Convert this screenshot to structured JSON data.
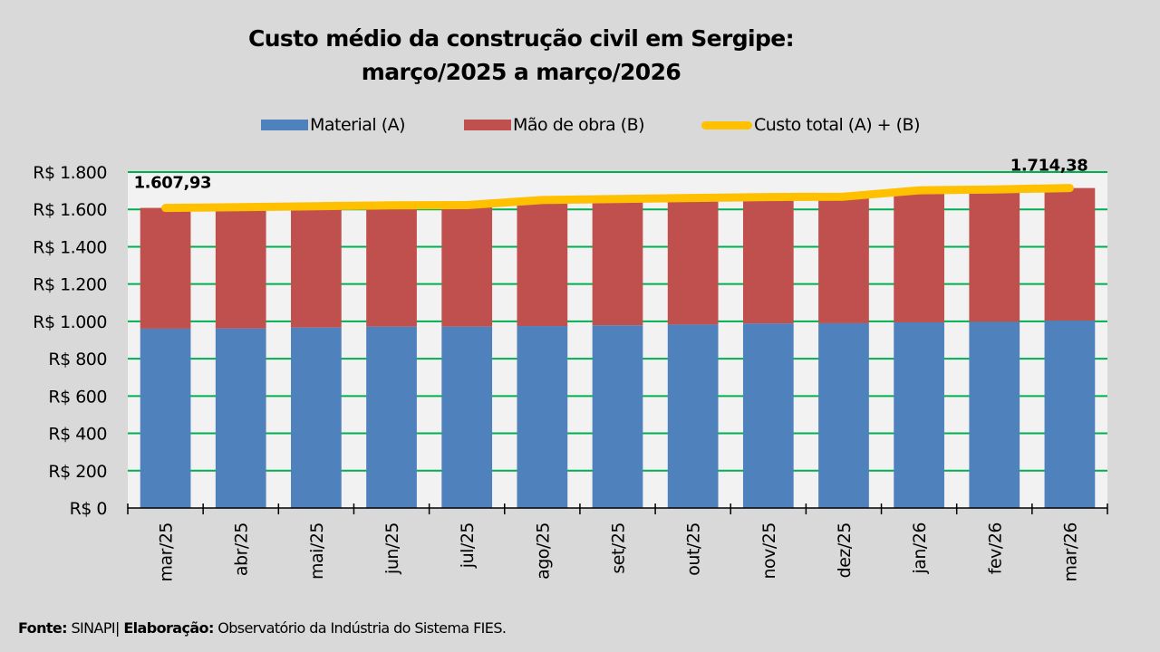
{
  "chart_data": {
    "type": "bar",
    "stacked": true,
    "title_lines": [
      "Custo médio da construção civil em Sergipe:",
      "março/2025 a março/2026"
    ],
    "categories": [
      "mar/25",
      "abr/25",
      "mai/25",
      "jun/25",
      "jul/25",
      "ago/25",
      "set/25",
      "out/25",
      "nov/25",
      "dez/25",
      "jan/26",
      "fev/26",
      "mar/26"
    ],
    "series": [
      {
        "name": "Material (A)",
        "kind": "bar",
        "color": "#4f81bd",
        "values": [
          961,
          962,
          967,
          972,
          972,
          975,
          979,
          983,
          989,
          990,
          995,
          998,
          1004
        ]
      },
      {
        "name": "Mão de obra (B)",
        "kind": "bar",
        "color": "#c0504d",
        "values": [
          646.93,
          650,
          650,
          650,
          651,
          675,
          677,
          678,
          677,
          678,
          707,
          709,
          710.38
        ]
      },
      {
        "name": "Custo total (A) + (B)",
        "kind": "line",
        "color": "#ffc000",
        "values": [
          1607.93,
          1612,
          1617,
          1622,
          1623,
          1650,
          1656,
          1661,
          1666,
          1668,
          1702,
          1707,
          1714.38
        ]
      }
    ],
    "data_labels": [
      {
        "category": "mar/25",
        "text": "1.607,93"
      },
      {
        "category": "mar/26",
        "text": "1.714,38"
      }
    ],
    "y_ticks": [
      0,
      200,
      400,
      600,
      800,
      1000,
      1200,
      1400,
      1600,
      1800
    ],
    "y_tick_labels": [
      "R$ 0",
      "R$ 200",
      "R$ 400",
      "R$ 600",
      "R$ 800",
      "R$ 1.000",
      "R$ 1.200",
      "R$ 1.400",
      "R$ 1.600",
      "R$ 1.800"
    ],
    "ylim": [
      0,
      1800
    ],
    "xlabel": "",
    "ylabel": "",
    "grid": true,
    "grid_color": "#00b050",
    "legend_position": "top"
  },
  "legend": [
    {
      "label": "Material (A)",
      "color": "#4f81bd",
      "kind": "bar"
    },
    {
      "label": "Mão de obra (B)",
      "color": "#c0504d",
      "kind": "bar"
    },
    {
      "label": "Custo total (A) + (B)",
      "color": "#ffc000",
      "kind": "line"
    }
  ],
  "footer": {
    "source_label": "Fonte:",
    "source_value": "SINAPI",
    "separator": "|",
    "credit_label": "Elaboração:",
    "credit_value": "Observatório da Indústria do Sistema FIES."
  }
}
